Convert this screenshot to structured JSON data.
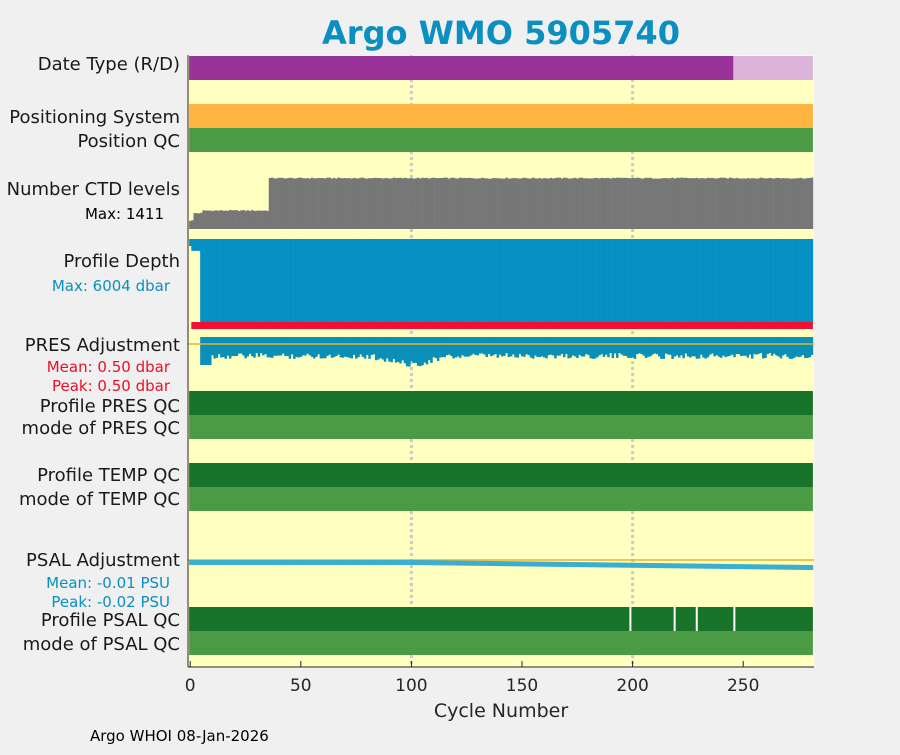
{
  "chart_data": {
    "type": "bar",
    "title": "Argo WMO 5905740",
    "xlabel": "Cycle Number",
    "xlim": [
      -1,
      282
    ],
    "xticks": [
      0,
      50,
      100,
      150,
      200,
      250
    ],
    "vertical_gridlines_at": [
      100,
      200
    ],
    "footer": "Argo WHOI 08-Jan-2026",
    "panels": {
      "date_type": {
        "label": "Date Type (R/D)",
        "segments": [
          {
            "from": 0,
            "to": 246,
            "color": "#993399"
          },
          {
            "from": 246,
            "to": 281,
            "color": "#dcb4dc"
          }
        ]
      },
      "positioning_system": {
        "label": "Positioning System",
        "segments": [
          {
            "from": 0,
            "to": 281,
            "color": "#ffb340"
          }
        ]
      },
      "position_qc": {
        "label": "Position QC",
        "segments": [
          {
            "from": 0,
            "to": 281,
            "color": "#4a9a46"
          }
        ]
      },
      "ctd_levels": {
        "label": "Number CTD levels",
        "max_label": "Max: 1411",
        "max": 1411,
        "color": "#777777",
        "level_by_cycle": [
          {
            "from": 0,
            "to": 1,
            "value": 230
          },
          {
            "from": 2,
            "to": 5,
            "value": 430
          },
          {
            "from": 6,
            "to": 35,
            "value": 500
          },
          {
            "from": 36,
            "to": 281,
            "value": 1380
          }
        ]
      },
      "profile_depth": {
        "label": "Profile Depth",
        "max_label": "Max: 6004 dbar",
        "max": 6004,
        "color": "#0590c4",
        "depth_by_cycle": [
          {
            "from": 0,
            "to": 0,
            "value": 500
          },
          {
            "from": 1,
            "to": 4,
            "value": 850
          },
          {
            "from": 5,
            "to": 281,
            "value": 6004
          }
        ]
      },
      "pres_adjustment": {
        "label": "PRES Adjustment",
        "mean_label": "Mean: 0.50 dbar",
        "peak_label": "Peak: 0.50 dbar",
        "mean": 0.5,
        "peak": 0.5,
        "ref_line_color": "#e8b030",
        "bar_color": "#0a8fb8",
        "red_bar_color": "#ee1133"
      },
      "profile_pres_qc": {
        "label": "Profile PRES QC",
        "segments": [
          {
            "from": 0,
            "to": 281,
            "color": "#17742a"
          }
        ]
      },
      "mode_pres_qc": {
        "label": "mode of PRES QC",
        "segments": [
          {
            "from": 0,
            "to": 281,
            "color": "#4a9a46"
          }
        ]
      },
      "profile_temp_qc": {
        "label": "Profile TEMP QC",
        "segments": [
          {
            "from": 0,
            "to": 281,
            "color": "#17742a"
          }
        ]
      },
      "mode_temp_qc": {
        "label": "mode of TEMP QC",
        "segments": [
          {
            "from": 0,
            "to": 281,
            "color": "#4a9a46"
          }
        ]
      },
      "psal_adjustment": {
        "label": "PSAL Adjustment",
        "mean_label": "Mean: -0.01 PSU",
        "peak_label": "Peak: -0.02 PSU",
        "mean": -0.01,
        "peak": -0.02,
        "ref_line_color": "#e8b030",
        "bar_color": "#3aaed0"
      },
      "profile_psal_qc": {
        "label": "Profile PSAL QC",
        "color": "#17742a",
        "white_ticks_at_cycles": [
          199,
          219,
          229,
          246
        ]
      },
      "mode_psal_qc": {
        "label": "mode of PSAL QC",
        "segments": [
          {
            "from": 0,
            "to": 281,
            "color": "#4a9a46"
          }
        ]
      }
    }
  }
}
